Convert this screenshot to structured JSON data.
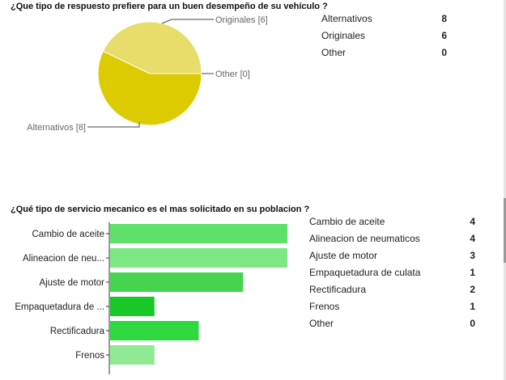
{
  "questions": [
    {
      "title": "¿Que tipo de respuesto prefiere para un buen desempeño de su vehículo ?",
      "summary": [
        {
          "label": "Alternativos",
          "count": "8"
        },
        {
          "label": "Originales",
          "count": "6"
        },
        {
          "label": "Other",
          "count": "0"
        }
      ]
    },
    {
      "title": "¿Qué tipo de servicio mecanico es el mas solicitado en su poblacion ?",
      "summary": [
        {
          "label": "Cambio de aceite",
          "count": "4"
        },
        {
          "label": "Alineacion de neumaticos",
          "count": "4"
        },
        {
          "label": "Ajuste de motor",
          "count": "3"
        },
        {
          "label": "Empaquetadura de culata",
          "count": "1"
        },
        {
          "label": "Rectificadura",
          "count": "2"
        },
        {
          "label": "Frenos",
          "count": "1"
        },
        {
          "label": "Other",
          "count": "0"
        }
      ]
    }
  ],
  "chart_data": [
    {
      "type": "pie",
      "categories": [
        "Alternativos",
        "Originales",
        "Other"
      ],
      "values": [
        8,
        6,
        0
      ],
      "slice_labels": [
        "Alternativos [8]",
        "Originales [6]",
        "Other [0]"
      ],
      "colors": [
        "#dccb00",
        "#e8dc6a",
        "#f2eab0"
      ]
    },
    {
      "type": "bar",
      "orientation": "horizontal",
      "categories": [
        "Cambio de aceite",
        "Alineacion de neu...",
        "Ajuste de motor",
        "Empaquetadura de ...",
        "Rectificadura",
        "Frenos"
      ],
      "values": [
        4,
        4,
        3,
        1,
        2,
        1
      ],
      "xlim": [
        0,
        4
      ],
      "colors": [
        "#5ee06a",
        "#7ee884",
        "#44d450",
        "#18c828",
        "#30d840",
        "#90ea94"
      ]
    }
  ]
}
